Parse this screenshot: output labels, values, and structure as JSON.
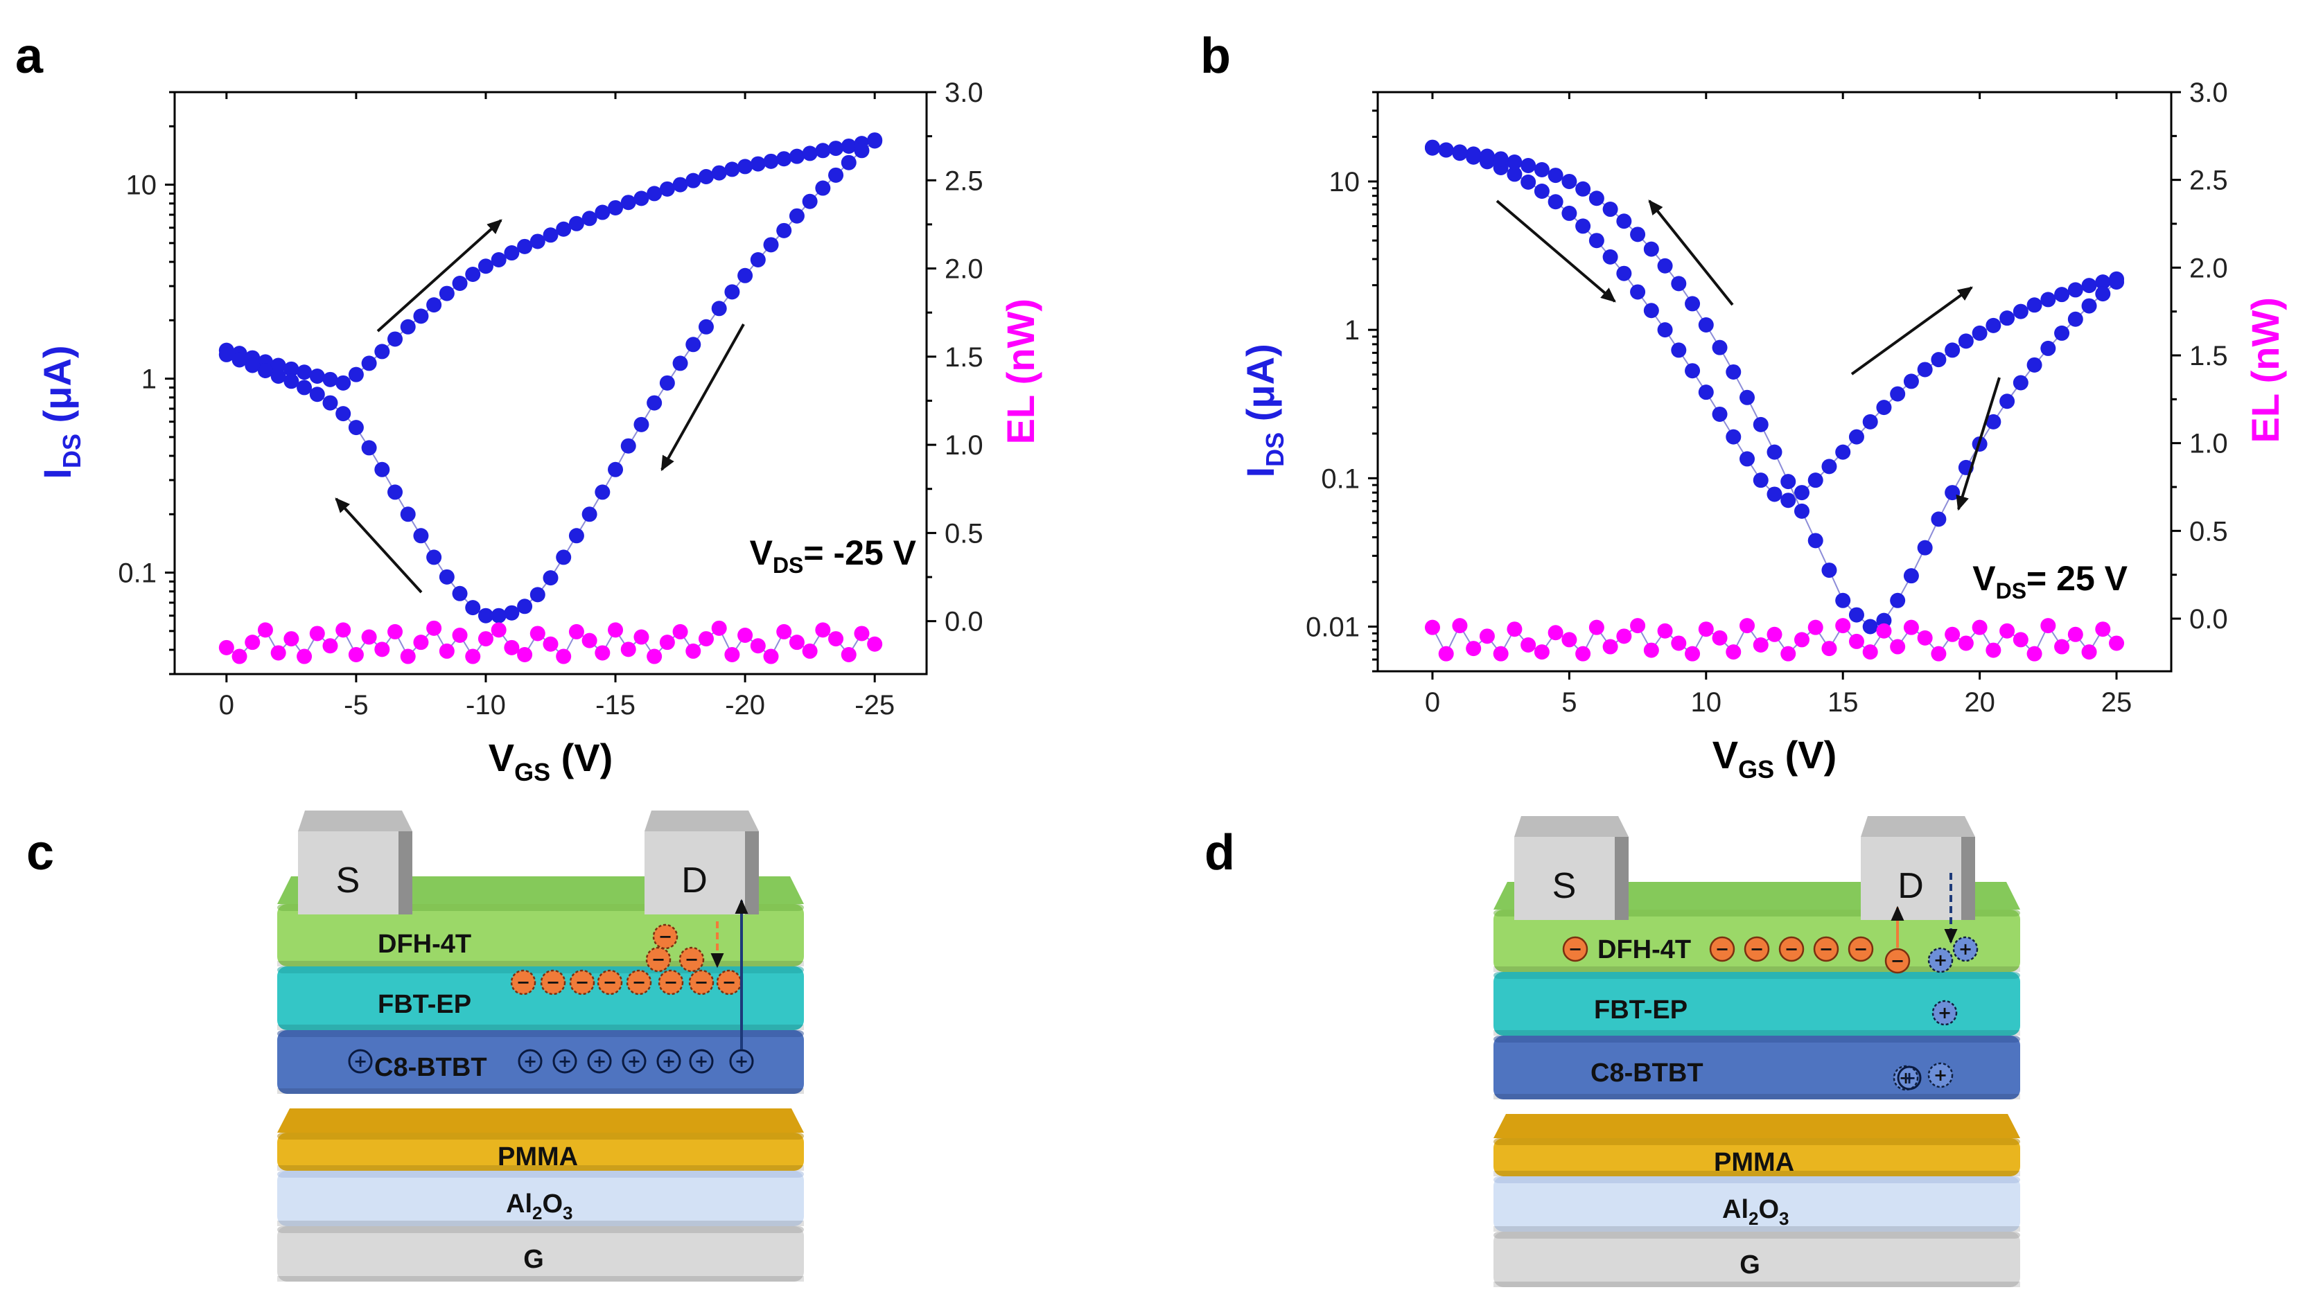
{
  "panels": {
    "a": {
      "letter": "a"
    },
    "b": {
      "letter": "b"
    },
    "c": {
      "letter": "c"
    },
    "d": {
      "letter": "d"
    }
  },
  "colors": {
    "ids": "#1f1fe0",
    "el": "#ff00ff",
    "line": "#8c8cd8",
    "arrow": "#111111",
    "electron_fill": "#f07b39",
    "hole_fill": "#4a74cc",
    "layer_dfh": "#9bd868",
    "layer_fbt": "#34c6c6",
    "layer_c8": "#4f74c0",
    "layer_pmma": "#e9b51f",
    "layer_al2o3": "#d3e1f5",
    "layer_g": "#d9d9d9",
    "contact": "#bdbdbd"
  },
  "chart_data": [
    {
      "panel": "a",
      "type": "scatter",
      "title": "",
      "xlabel_main": "V",
      "xlabel_sub": "GS",
      "xlabel_unit": " (V)",
      "xlim": [
        2,
        -27
      ],
      "xticks": [
        0,
        -5,
        -10,
        -15,
        -20,
        -25
      ],
      "xtick_labels": [
        "0",
        "-5",
        "-10",
        "-15",
        "-20",
        "-25"
      ],
      "ylabel_left_main": "I",
      "ylabel_left_sub": "DS",
      "ylabel_left_unit": " (μA)",
      "yscale_left": "log",
      "ylim_left": [
        0.03,
        30
      ],
      "yticks_left": [
        0.1,
        1,
        10
      ],
      "ytick_labels_left": [
        "0.1",
        "1",
        "10"
      ],
      "ylabel_right": "EL (nW)",
      "ylim_right": [
        -0.3,
        3.0
      ],
      "yticks_right": [
        0.0,
        0.5,
        1.0,
        1.5,
        2.0,
        2.5,
        3.0
      ],
      "ytick_labels_right": [
        "0.0",
        "0.5",
        "1.0",
        "1.5",
        "2.0",
        "2.5",
        "3.0"
      ],
      "annotation": {
        "main": "V",
        "sub": "DS",
        "rest": "= -25 V"
      },
      "series": [
        {
          "name": "I_DS forward sweep",
          "axis": "left",
          "x": [
            0,
            -0.5,
            -1,
            -1.5,
            -2,
            -2.5,
            -3,
            -3.5,
            -4,
            -4.5,
            -5,
            -5.5,
            -6,
            -6.5,
            -7,
            -7.5,
            -8,
            -8.5,
            -9,
            -9.5,
            -10,
            -10.5,
            -11,
            -11.5,
            -12,
            -12.5,
            -13,
            -13.5,
            -14,
            -14.5,
            -15,
            -15.5,
            -16,
            -16.5,
            -17,
            -17.5,
            -18,
            -18.5,
            -19,
            -19.5,
            -20,
            -20.5,
            -21,
            -21.5,
            -22,
            -22.5,
            -23,
            -23.5,
            -24,
            -24.5,
            -25
          ],
          "y": [
            1.4,
            1.35,
            1.28,
            1.22,
            1.17,
            1.12,
            1.08,
            1.03,
            0.99,
            0.95,
            1.05,
            1.2,
            1.38,
            1.6,
            1.85,
            2.1,
            2.4,
            2.75,
            3.1,
            3.45,
            3.8,
            4.1,
            4.45,
            4.8,
            5.1,
            5.5,
            5.9,
            6.3,
            6.7,
            7.2,
            7.6,
            8.1,
            8.5,
            9.0,
            9.5,
            10.0,
            10.5,
            11.0,
            11.5,
            12.0,
            12.4,
            12.8,
            13.2,
            13.6,
            14.0,
            14.5,
            15.0,
            15.4,
            15.8,
            16.3,
            16.8
          ]
        },
        {
          "name": "I_DS reverse sweep",
          "axis": "left",
          "x": [
            -25,
            -24.5,
            -24,
            -23.5,
            -23,
            -22.5,
            -22,
            -21.5,
            -21,
            -20.5,
            -20,
            -19.5,
            -19,
            -18.5,
            -18,
            -17.5,
            -17,
            -16.5,
            -16,
            -15.5,
            -15,
            -14.5,
            -14,
            -13.5,
            -13,
            -12.5,
            -12,
            -11.5,
            -11,
            -10.5,
            -10,
            -9.5,
            -9,
            -8.5,
            -8,
            -7.5,
            -7,
            -6.5,
            -6,
            -5.5,
            -5,
            -4.5,
            -4,
            -3.5,
            -3,
            -2.5,
            -2,
            -1.5,
            -1,
            -0.5,
            0
          ],
          "y": [
            17.0,
            15.0,
            13.0,
            11.2,
            9.6,
            8.2,
            6.9,
            5.8,
            4.9,
            4.1,
            3.4,
            2.8,
            2.3,
            1.85,
            1.5,
            1.2,
            0.95,
            0.75,
            0.58,
            0.45,
            0.34,
            0.26,
            0.2,
            0.155,
            0.12,
            0.094,
            0.077,
            0.067,
            0.062,
            0.06,
            0.06,
            0.066,
            0.078,
            0.095,
            0.12,
            0.155,
            0.2,
            0.26,
            0.34,
            0.44,
            0.56,
            0.66,
            0.75,
            0.83,
            0.9,
            0.97,
            1.03,
            1.1,
            1.17,
            1.25,
            1.33
          ]
        },
        {
          "name": "EL",
          "axis": "right",
          "x": [
            0,
            -0.5,
            -1,
            -1.5,
            -2,
            -2.5,
            -3,
            -3.5,
            -4,
            -4.5,
            -5,
            -5.5,
            -6,
            -6.5,
            -7,
            -7.5,
            -8,
            -8.5,
            -9,
            -9.5,
            -10,
            -10.5,
            -11,
            -11.5,
            -12,
            -12.5,
            -13,
            -13.5,
            -14,
            -14.5,
            -15,
            -15.5,
            -16,
            -16.5,
            -17,
            -17.5,
            -18,
            -18.5,
            -19,
            -19.5,
            -20,
            -20.5,
            -21,
            -21.5,
            -22,
            -22.5,
            -23,
            -23.5,
            -24,
            -24.5,
            -25
          ],
          "y": [
            -0.15,
            -0.2,
            -0.12,
            -0.05,
            -0.18,
            -0.1,
            -0.2,
            -0.07,
            -0.14,
            -0.05,
            -0.19,
            -0.09,
            -0.16,
            -0.06,
            -0.2,
            -0.12,
            -0.04,
            -0.17,
            -0.08,
            -0.2,
            -0.1,
            -0.05,
            -0.15,
            -0.19,
            -0.07,
            -0.13,
            -0.2,
            -0.06,
            -0.11,
            -0.18,
            -0.05,
            -0.16,
            -0.09,
            -0.2,
            -0.12,
            -0.06,
            -0.17,
            -0.1,
            -0.04,
            -0.19,
            -0.08,
            -0.14,
            -0.2,
            -0.06,
            -0.12,
            -0.17,
            -0.05,
            -0.1,
            -0.19,
            -0.07,
            -0.13
          ]
        }
      ]
    },
    {
      "panel": "b",
      "type": "scatter",
      "title": "",
      "xlabel_main": "V",
      "xlabel_sub": "GS",
      "xlabel_unit": " (V)",
      "xlim": [
        -2,
        27
      ],
      "xticks": [
        0,
        5,
        10,
        15,
        20,
        25
      ],
      "xtick_labels": [
        "0",
        "5",
        "10",
        "15",
        "20",
        "25"
      ],
      "ylabel_left_main": "I",
      "ylabel_left_sub": "DS",
      "ylabel_left_unit": " (μA)",
      "yscale_left": "log",
      "ylim_left": [
        0.005,
        40
      ],
      "yticks_left": [
        0.01,
        0.1,
        1,
        10
      ],
      "ytick_labels_left": [
        "0.01",
        "0.1",
        "1",
        "10"
      ],
      "ylabel_right": "EL (nW)",
      "ylim_right": [
        -0.3,
        3.0
      ],
      "yticks_right": [
        0.0,
        0.5,
        1.0,
        1.5,
        2.0,
        2.5,
        3.0
      ],
      "ytick_labels_right": [
        "0.0",
        "0.5",
        "1.0",
        "1.5",
        "2.0",
        "2.5",
        "3.0"
      ],
      "annotation": {
        "main": "V",
        "sub": "DS",
        "rest": "= 25 V"
      },
      "series": [
        {
          "name": "I_DS forward sweep",
          "axis": "left",
          "x": [
            0,
            0.5,
            1,
            1.5,
            2,
            2.5,
            3,
            3.5,
            4,
            4.5,
            5,
            5.5,
            6,
            6.5,
            7,
            7.5,
            8,
            8.5,
            9,
            9.5,
            10,
            10.5,
            11,
            11.5,
            12,
            12.5,
            13,
            13.5,
            14,
            14.5,
            15,
            15.5,
            16,
            16.5,
            17,
            17.5,
            18,
            18.5,
            19,
            19.5,
            20,
            20.5,
            21,
            21.5,
            22,
            22.5,
            23,
            23.5,
            24,
            24.5,
            25
          ],
          "y": [
            17.0,
            16.3,
            15.5,
            14.6,
            13.6,
            12.4,
            11.2,
            9.9,
            8.6,
            7.3,
            6.1,
            5.0,
            4.0,
            3.1,
            2.4,
            1.8,
            1.35,
            1.0,
            0.73,
            0.53,
            0.38,
            0.27,
            0.19,
            0.135,
            0.097,
            0.078,
            0.071,
            0.08,
            0.097,
            0.12,
            0.15,
            0.19,
            0.24,
            0.3,
            0.37,
            0.45,
            0.54,
            0.63,
            0.73,
            0.84,
            0.95,
            1.07,
            1.2,
            1.33,
            1.47,
            1.6,
            1.73,
            1.86,
            1.99,
            2.1,
            2.2
          ]
        },
        {
          "name": "I_DS reverse sweep",
          "axis": "left",
          "x": [
            25,
            24.5,
            24,
            23.5,
            23,
            22.5,
            22,
            21.5,
            21,
            20.5,
            20,
            19.5,
            19,
            18.5,
            18,
            17.5,
            17,
            16.5,
            16,
            15.5,
            15,
            14.5,
            14,
            13.5,
            13,
            12.5,
            12,
            11.5,
            11,
            10.5,
            10,
            9.5,
            9,
            8.5,
            8,
            7.5,
            7,
            6.5,
            6,
            5.5,
            5,
            4.5,
            4,
            3.5,
            3,
            2.5,
            2,
            1.5,
            1,
            0.5,
            0
          ],
          "y": [
            2.1,
            1.75,
            1.45,
            1.18,
            0.95,
            0.75,
            0.58,
            0.44,
            0.33,
            0.24,
            0.17,
            0.118,
            0.08,
            0.053,
            0.034,
            0.022,
            0.015,
            0.011,
            0.01,
            0.012,
            0.015,
            0.024,
            0.038,
            0.06,
            0.095,
            0.15,
            0.23,
            0.35,
            0.52,
            0.76,
            1.08,
            1.5,
            2.05,
            2.7,
            3.5,
            4.4,
            5.4,
            6.5,
            7.7,
            8.9,
            10.0,
            11.0,
            12.0,
            12.8,
            13.5,
            14.2,
            14.8,
            15.3,
            15.8,
            16.3,
            16.8
          ]
        },
        {
          "name": "EL",
          "axis": "right",
          "x": [
            0,
            0.5,
            1,
            1.5,
            2,
            2.5,
            3,
            3.5,
            4,
            4.5,
            5,
            5.5,
            6,
            6.5,
            7,
            7.5,
            8,
            8.5,
            9,
            9.5,
            10,
            10.5,
            11,
            11.5,
            12,
            12.5,
            13,
            13.5,
            14,
            14.5,
            15,
            15.5,
            16,
            16.5,
            17,
            17.5,
            18,
            18.5,
            19,
            19.5,
            20,
            20.5,
            21,
            21.5,
            22,
            22.5,
            23,
            23.5,
            24,
            24.5,
            25
          ],
          "y": [
            -0.05,
            -0.2,
            -0.04,
            -0.17,
            -0.1,
            -0.2,
            -0.06,
            -0.15,
            -0.19,
            -0.08,
            -0.12,
            -0.2,
            -0.05,
            -0.16,
            -0.1,
            -0.04,
            -0.18,
            -0.07,
            -0.14,
            -0.2,
            -0.06,
            -0.11,
            -0.19,
            -0.04,
            -0.15,
            -0.09,
            -0.2,
            -0.12,
            -0.05,
            -0.17,
            -0.04,
            -0.13,
            -0.19,
            -0.07,
            -0.16,
            -0.05,
            -0.11,
            -0.2,
            -0.09,
            -0.14,
            -0.05,
            -0.18,
            -0.07,
            -0.12,
            -0.2,
            -0.04,
            -0.16,
            -0.09,
            -0.19,
            -0.06,
            -0.14
          ]
        }
      ]
    }
  ],
  "diagram_c": {
    "contacts": {
      "source": "S",
      "drain": "D",
      "gate": "G"
    },
    "layers": {
      "dfh": "DFH-4T",
      "fbt": "FBT-EP",
      "c8": "C8-BTBT",
      "pmma": "PMMA",
      "dielectric_main": "Al",
      "dielectric_sub1": "2",
      "dielectric_mid": "O",
      "dielectric_sub2": "3"
    },
    "electron_sign": "−",
    "hole_sign": "+",
    "electron_count": 11,
    "hole_count": 8
  },
  "diagram_d": {
    "contacts": {
      "source": "S",
      "drain": "D",
      "gate": "G"
    },
    "layers": {
      "dfh": "DFH-4T",
      "fbt": "FBT-EP",
      "c8": "C8-BTBT",
      "pmma": "PMMA",
      "dielectric_main": "Al",
      "dielectric_sub1": "2",
      "dielectric_mid": "O",
      "dielectric_sub2": "3"
    },
    "electron_sign": "−",
    "hole_sign": "+",
    "electron_count": 7,
    "hole_count": 6
  }
}
